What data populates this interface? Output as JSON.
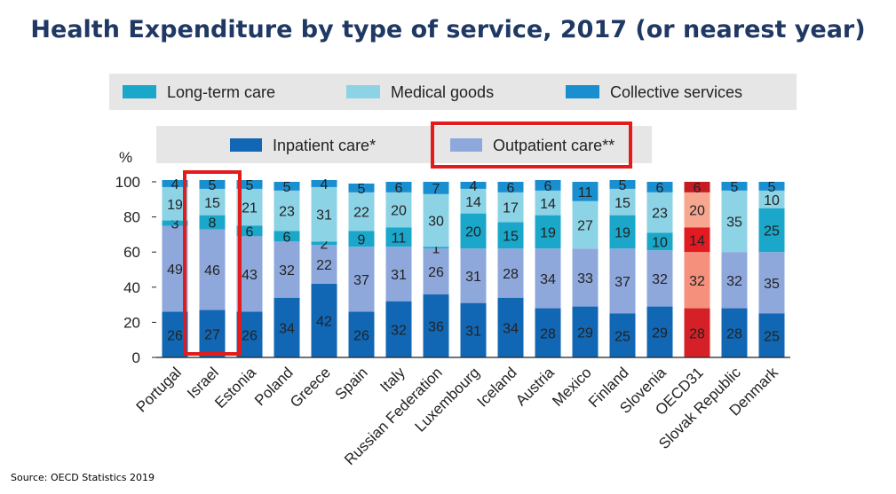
{
  "title": "Health Expenditure by type of service, 2017 (or nearest year)",
  "source": "Source: OECD Statistics 2019",
  "chart_data": {
    "type": "bar",
    "stacked": true,
    "ylabel": "%",
    "ylim": [
      0,
      100
    ],
    "yticks": [
      "0",
      "20",
      "40",
      "60",
      "80",
      "100"
    ],
    "categories": [
      "Portugal",
      "Israel",
      "Estonia",
      "Poland",
      "Greece",
      "Spain",
      "Italy",
      "Russian Federation",
      "Luxembourg",
      "Iceland",
      "Austria",
      "Mexico",
      "Finland",
      "Slovenia",
      "OECD31",
      "Slovak Republic",
      "Denmark"
    ],
    "highlight": [
      "Israel",
      "Outpatient care**"
    ],
    "series": [
      {
        "name": "Inpatient care*",
        "color": "#1167b3",
        "oecd_color": "#d62027",
        "values": [
          26,
          27,
          26,
          34,
          42,
          26,
          32,
          36,
          31,
          34,
          28,
          29,
          25,
          29,
          28,
          28,
          25
        ]
      },
      {
        "name": "Outpatient care**",
        "color": "#8fa8dc",
        "oecd_color": "#f4907c",
        "values": [
          49,
          46,
          43,
          32,
          22,
          37,
          31,
          26,
          31,
          28,
          34,
          33,
          37,
          32,
          32,
          32,
          35
        ]
      },
      {
        "name": "Long-term care",
        "color": "#1aa7c9",
        "oecd_color": "#e01b22",
        "values": [
          3,
          8,
          6,
          6,
          2,
          9,
          11,
          1,
          20,
          15,
          19,
          0,
          19,
          10,
          14,
          0,
          25
        ]
      },
      {
        "name": "Medical goods",
        "color": "#8dd3e6",
        "oecd_color": "#f7a68f",
        "values": [
          19,
          15,
          21,
          23,
          31,
          22,
          20,
          30,
          14,
          17,
          14,
          27,
          15,
          23,
          20,
          35,
          10
        ]
      },
      {
        "name": "Collective services",
        "color": "#1a8fd0",
        "oecd_color": "#c51b22",
        "values": [
          4,
          5,
          5,
          5,
          4,
          5,
          6,
          7,
          4,
          6,
          6,
          11,
          5,
          6,
          6,
          5,
          5
        ]
      }
    ],
    "legend": {
      "row1": [
        "Long-term care",
        "Medical goods",
        "Collective services"
      ],
      "row2": [
        "Inpatient care*",
        "Outpatient care**"
      ],
      "placement": "top"
    }
  }
}
